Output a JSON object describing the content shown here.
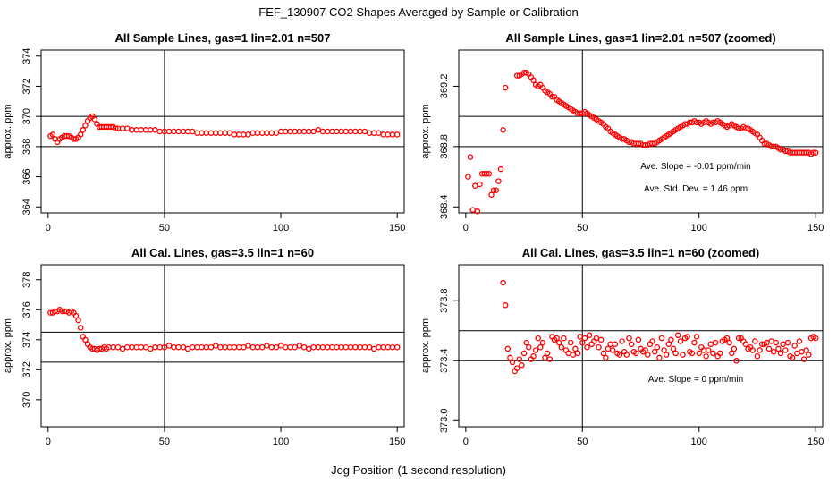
{
  "figure": {
    "title": "FEF_130907  CO2 Shapes Averaged by Sample or Calibration",
    "xlabel": "Jog Position (1 second resolution)"
  },
  "chart_data": [
    {
      "type": "scatter",
      "title": "All Sample Lines, gas=1 lin=2.01 n=507",
      "ylabel": "approx. ppm",
      "xlim": [
        -3,
        153
      ],
      "ylim": [
        363.6,
        374.4
      ],
      "xticks": [
        "0",
        "50",
        "100",
        "150"
      ],
      "yticks": [
        "364",
        "366",
        "368",
        "370",
        "372",
        "374"
      ],
      "hlines": [
        368,
        370
      ],
      "vline": 50,
      "color": "#ff0000",
      "annotations": [],
      "points": {
        "x": [
          1,
          2,
          3,
          4,
          5,
          6,
          7,
          8,
          9,
          10,
          11,
          12,
          13,
          14,
          15,
          16,
          17,
          18,
          19,
          20,
          21,
          22,
          23,
          24,
          25,
          26,
          27,
          28,
          29,
          30,
          32,
          34,
          36,
          38,
          40,
          42,
          44,
          46,
          48,
          50,
          52,
          54,
          56,
          58,
          60,
          62,
          64,
          66,
          68,
          70,
          72,
          74,
          76,
          78,
          80,
          82,
          84,
          86,
          88,
          90,
          92,
          94,
          96,
          98,
          100,
          102,
          104,
          106,
          108,
          110,
          112,
          114,
          116,
          118,
          120,
          122,
          124,
          126,
          128,
          130,
          132,
          134,
          136,
          138,
          140,
          142,
          144,
          146,
          148,
          150
        ],
        "y": [
          368.7,
          368.8,
          368.5,
          368.3,
          368.5,
          368.6,
          368.7,
          368.7,
          368.7,
          368.6,
          368.5,
          368.5,
          368.6,
          368.8,
          369.1,
          369.4,
          369.7,
          369.9,
          370.0,
          369.8,
          369.5,
          369.3,
          369.3,
          369.3,
          369.3,
          369.3,
          369.3,
          369.3,
          369.2,
          369.2,
          369.2,
          369.2,
          369.1,
          369.1,
          369.1,
          369.1,
          369.1,
          369.1,
          369.0,
          369.0,
          369.0,
          369.0,
          369.0,
          369.0,
          369.0,
          369.0,
          368.9,
          368.9,
          368.9,
          368.9,
          368.9,
          368.9,
          368.9,
          368.9,
          368.8,
          368.8,
          368.8,
          368.8,
          368.9,
          368.9,
          368.9,
          368.9,
          368.9,
          368.9,
          369.0,
          369.0,
          369.0,
          369.0,
          369.0,
          369.0,
          369.0,
          369.0,
          369.1,
          369.0,
          369.0,
          369.0,
          369.0,
          369.0,
          369.0,
          369.0,
          369.0,
          369.0,
          369.0,
          368.9,
          368.9,
          368.9,
          368.8,
          368.8,
          368.8,
          368.8
        ]
      }
    },
    {
      "type": "scatter",
      "title": "All Sample Lines, gas=1 lin=2.01 n=507 (zoomed)",
      "ylabel": "approx. ppm",
      "xlim": [
        -3,
        153
      ],
      "ylim": [
        368.36,
        369.44
      ],
      "xticks": [
        "0",
        "50",
        "100",
        "150"
      ],
      "yticks": [
        "368.4",
        "368.8",
        "369.2"
      ],
      "hlines": [
        368.8,
        369.0
      ],
      "vline": 50,
      "color": "#ff0000",
      "annotations": [
        "Ave. Slope =  -0.01  ppm/min",
        "Ave. Std. Dev. =  1.46  ppm"
      ],
      "points": {
        "x": [
          1,
          2,
          3,
          4,
          5,
          6,
          7,
          8,
          9,
          10,
          11,
          12,
          13,
          14,
          15,
          16,
          17,
          22,
          23,
          24,
          25,
          26,
          27,
          28,
          29,
          30,
          31,
          32,
          33,
          34,
          35,
          36,
          37,
          38,
          39,
          40,
          41,
          42,
          43,
          44,
          45,
          46,
          47,
          48,
          49,
          50,
          51,
          52,
          53,
          54,
          55,
          56,
          57,
          58,
          59,
          60,
          61,
          62,
          63,
          64,
          65,
          66,
          67,
          68,
          69,
          70,
          71,
          72,
          73,
          74,
          75,
          76,
          77,
          78,
          79,
          80,
          81,
          82,
          83,
          84,
          85,
          86,
          87,
          88,
          89,
          90,
          91,
          92,
          93,
          94,
          95,
          96,
          97,
          98,
          99,
          100,
          101,
          102,
          103,
          104,
          105,
          106,
          107,
          108,
          109,
          110,
          111,
          112,
          113,
          114,
          115,
          116,
          117,
          118,
          119,
          120,
          121,
          122,
          123,
          124,
          125,
          126,
          127,
          128,
          129,
          130,
          131,
          132,
          133,
          134,
          135,
          136,
          137,
          138,
          139,
          140,
          141,
          142,
          143,
          144,
          145,
          146,
          147,
          148,
          149,
          150
        ],
        "y": [
          368.6,
          368.73,
          368.38,
          368.54,
          368.37,
          368.55,
          368.62,
          368.62,
          368.62,
          368.62,
          368.48,
          368.51,
          368.51,
          368.57,
          368.65,
          368.91,
          369.19,
          369.27,
          369.27,
          369.28,
          369.29,
          369.29,
          369.28,
          369.26,
          369.24,
          369.21,
          369.2,
          369.21,
          369.19,
          369.17,
          369.16,
          369.15,
          369.13,
          369.13,
          369.11,
          369.1,
          369.09,
          369.08,
          369.07,
          369.06,
          369.05,
          369.04,
          369.03,
          369.02,
          369.02,
          369.02,
          369.03,
          369.02,
          369.01,
          369.0,
          368.99,
          368.98,
          368.97,
          368.96,
          368.95,
          368.93,
          368.92,
          368.9,
          368.89,
          368.88,
          368.87,
          368.86,
          368.85,
          368.85,
          368.84,
          368.83,
          368.83,
          368.82,
          368.82,
          368.82,
          368.82,
          368.81,
          368.81,
          368.81,
          368.82,
          368.82,
          368.82,
          368.83,
          368.84,
          368.85,
          368.86,
          368.87,
          368.88,
          368.89,
          368.9,
          368.91,
          368.92,
          368.93,
          368.94,
          368.95,
          368.95,
          368.96,
          368.96,
          368.97,
          368.96,
          368.96,
          368.95,
          368.96,
          368.97,
          368.96,
          368.95,
          368.96,
          368.96,
          368.97,
          368.96,
          368.95,
          368.94,
          368.93,
          368.94,
          368.95,
          368.94,
          368.93,
          368.92,
          368.92,
          368.93,
          368.92,
          368.92,
          368.91,
          368.9,
          368.89,
          368.88,
          368.86,
          368.84,
          368.82,
          368.82,
          368.81,
          368.8,
          368.8,
          368.8,
          368.79,
          368.78,
          368.78,
          368.77,
          368.77,
          368.76,
          368.76,
          368.76,
          368.76,
          368.76,
          368.76,
          368.76,
          368.76,
          368.76,
          368.75,
          368.76,
          368.76
        ]
      }
    },
    {
      "type": "scatter",
      "title": "All Cal. Lines, gas=3.5 lin=1 n=60",
      "ylabel": "approx. ppm",
      "xlim": [
        -3,
        153
      ],
      "ylim": [
        368.2,
        379.0
      ],
      "xticks": [
        "0",
        "50",
        "100",
        "150"
      ],
      "yticks": [
        "370",
        "372",
        "374",
        "376",
        "378"
      ],
      "hlines": [
        372.5,
        374.5
      ],
      "vline": 50,
      "color": "#ff0000",
      "annotations": [],
      "points": {
        "x": [
          1,
          2,
          3,
          4,
          5,
          6,
          7,
          8,
          9,
          10,
          11,
          12,
          13,
          14,
          15,
          16,
          17,
          18,
          19,
          20,
          21,
          22,
          23,
          24,
          25,
          26,
          28,
          30,
          32,
          34,
          36,
          38,
          40,
          42,
          44,
          46,
          48,
          50,
          52,
          54,
          56,
          58,
          60,
          62,
          64,
          66,
          68,
          70,
          72,
          74,
          76,
          78,
          80,
          82,
          84,
          86,
          88,
          90,
          92,
          94,
          96,
          98,
          100,
          102,
          104,
          106,
          108,
          110,
          112,
          114,
          116,
          118,
          120,
          122,
          124,
          126,
          128,
          130,
          132,
          134,
          136,
          138,
          140,
          142,
          144,
          146,
          148,
          150
        ],
        "y": [
          375.8,
          375.8,
          375.9,
          375.9,
          376.0,
          375.9,
          375.9,
          375.9,
          375.8,
          375.9,
          375.8,
          375.6,
          375.3,
          374.8,
          374.2,
          374.0,
          373.7,
          373.5,
          373.4,
          373.4,
          373.3,
          373.4,
          373.4,
          373.5,
          373.4,
          373.5,
          373.5,
          373.5,
          373.4,
          373.5,
          373.5,
          373.5,
          373.5,
          373.5,
          373.4,
          373.5,
          373.5,
          373.5,
          373.6,
          373.5,
          373.5,
          373.5,
          373.4,
          373.5,
          373.5,
          373.5,
          373.5,
          373.5,
          373.6,
          373.5,
          373.5,
          373.5,
          373.5,
          373.5,
          373.5,
          373.6,
          373.5,
          373.5,
          373.5,
          373.6,
          373.5,
          373.5,
          373.6,
          373.5,
          373.5,
          373.5,
          373.6,
          373.5,
          373.4,
          373.5,
          373.5,
          373.5,
          373.5,
          373.5,
          373.5,
          373.5,
          373.5,
          373.5,
          373.5,
          373.5,
          373.5,
          373.5,
          373.4,
          373.5,
          373.5,
          373.5,
          373.5,
          373.5
        ]
      }
    },
    {
      "type": "scatter",
      "title": "All Cal. Lines, gas=3.5 lin=1 n=60 (zoomed)",
      "ylabel": "approx. ppm",
      "xlim": [
        -3,
        153
      ],
      "ylim": [
        372.96,
        374.04
      ],
      "xticks": [
        "0",
        "50",
        "100",
        "150"
      ],
      "yticks": [
        "373.0",
        "373.4",
        "373.8"
      ],
      "hlines": [
        373.4,
        373.6
      ],
      "vline": 50,
      "color": "#ff0000",
      "annotations": [
        "Ave. Slope =  0  ppm/min"
      ],
      "points": {
        "x": [
          16,
          17,
          18,
          19,
          20,
          21,
          22,
          23,
          24,
          25,
          26,
          27,
          28,
          29,
          30,
          31,
          32,
          33,
          34,
          35,
          36,
          37,
          38,
          39,
          40,
          41,
          42,
          43,
          44,
          45,
          46,
          47,
          48,
          49,
          50,
          51,
          52,
          53,
          54,
          55,
          56,
          57,
          58,
          59,
          60,
          61,
          62,
          63,
          64,
          65,
          66,
          67,
          68,
          69,
          70,
          71,
          72,
          73,
          74,
          75,
          76,
          77,
          78,
          79,
          80,
          81,
          82,
          83,
          84,
          85,
          86,
          87,
          88,
          89,
          90,
          91,
          92,
          93,
          94,
          95,
          96,
          97,
          98,
          99,
          100,
          101,
          102,
          103,
          104,
          105,
          106,
          107,
          108,
          109,
          110,
          111,
          112,
          113,
          114,
          115,
          116,
          117,
          118,
          119,
          120,
          121,
          122,
          123,
          124,
          125,
          126,
          127,
          128,
          129,
          130,
          131,
          132,
          133,
          134,
          135,
          136,
          137,
          138,
          139,
          140,
          141,
          142,
          143,
          144,
          145,
          146,
          147,
          148,
          149,
          150
        ],
        "y": [
          373.92,
          373.77,
          373.48,
          373.42,
          373.39,
          373.33,
          373.35,
          373.41,
          373.37,
          373.45,
          373.52,
          373.49,
          373.41,
          373.43,
          373.47,
          373.55,
          373.49,
          373.52,
          373.42,
          373.45,
          373.41,
          373.56,
          373.54,
          373.55,
          373.52,
          373.49,
          373.55,
          373.47,
          373.45,
          373.52,
          373.44,
          373.48,
          373.45,
          373.56,
          373.52,
          373.55,
          373.49,
          373.57,
          373.51,
          373.53,
          373.55,
          373.49,
          373.54,
          373.45,
          373.42,
          373.48,
          373.51,
          373.47,
          373.51,
          373.45,
          373.44,
          373.53,
          373.46,
          373.44,
          373.55,
          373.51,
          373.46,
          373.45,
          373.54,
          373.48,
          373.46,
          373.47,
          373.44,
          373.51,
          373.53,
          373.46,
          373.49,
          373.42,
          373.55,
          373.47,
          373.44,
          373.51,
          373.54,
          373.48,
          373.45,
          373.57,
          373.53,
          373.44,
          373.55,
          373.56,
          373.46,
          373.45,
          373.52,
          373.56,
          373.45,
          373.49,
          373.47,
          373.43,
          373.47,
          373.51,
          373.45,
          373.52,
          373.43,
          373.45,
          373.53,
          373.54,
          373.55,
          373.52,
          373.45,
          373.48,
          373.4,
          373.55,
          373.55,
          373.53,
          373.51,
          373.48,
          373.49,
          373.47,
          373.53,
          373.43,
          373.47,
          373.51,
          373.51,
          373.52,
          373.48,
          373.53,
          373.46,
          373.52,
          373.48,
          373.45,
          373.51,
          373.47,
          373.52,
          373.43,
          373.42,
          373.5,
          373.45,
          373.53,
          373.46,
          373.41,
          373.47,
          373.44,
          373.55,
          373.56,
          373.55
        ]
      }
    }
  ]
}
